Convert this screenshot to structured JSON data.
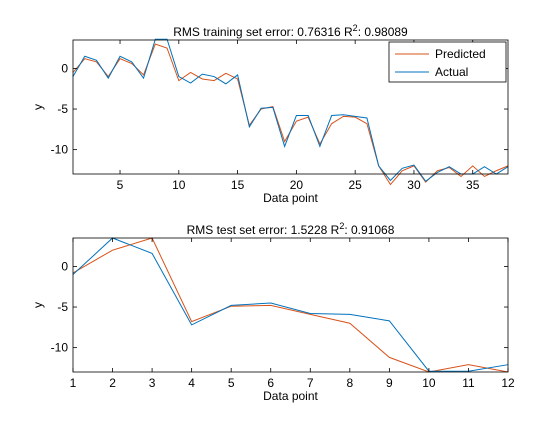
{
  "chart_data": [
    {
      "type": "line",
      "title": "RMS training set error: 0.76316  R",
      "title_sup": "2",
      "title_tail": ": 0.98089",
      "xlabel": "Data point",
      "ylabel": "y",
      "xlim": [
        1,
        38
      ],
      "ylim": [
        -13,
        3.5
      ],
      "xticks": [
        5,
        10,
        15,
        20,
        25,
        30,
        35
      ],
      "yticks": [
        0,
        -5,
        -10
      ],
      "legend_position": "top-right",
      "colors": {
        "Predicted": "#d95319",
        "Actual": "#0072bd"
      },
      "x": [
        1,
        2,
        3,
        4,
        5,
        6,
        7,
        8,
        9,
        10,
        11,
        12,
        13,
        14,
        15,
        16,
        17,
        18,
        19,
        20,
        21,
        22,
        23,
        24,
        25,
        26,
        27,
        28,
        29,
        30,
        31,
        32,
        33,
        34,
        35,
        36,
        37,
        38
      ],
      "series": [
        {
          "name": "Predicted",
          "values": [
            -0.5,
            1.2,
            0.8,
            -1.0,
            1.2,
            0.6,
            -0.8,
            3.0,
            2.5,
            -1.5,
            -0.5,
            -1.3,
            -1.5,
            -0.6,
            -1.3,
            -7.0,
            -5.0,
            -4.7,
            -9.0,
            -6.5,
            -6.0,
            -9.3,
            -6.8,
            -5.9,
            -6.0,
            -6.8,
            -12.0,
            -14.3,
            -12.6,
            -12.0,
            -14.0,
            -12.6,
            -12.2,
            -13.3,
            -12.0,
            -13.3,
            -12.6,
            -12.0
          ]
        },
        {
          "name": "Actual",
          "values": [
            -1.0,
            1.5,
            1.0,
            -1.2,
            1.5,
            0.8,
            -1.2,
            3.6,
            3.6,
            -1.0,
            -1.8,
            -0.7,
            -1.0,
            -1.9,
            -0.8,
            -7.2,
            -4.9,
            -4.8,
            -9.6,
            -5.8,
            -5.8,
            -9.6,
            -5.8,
            -5.7,
            -5.9,
            -6.1,
            -12.0,
            -13.8,
            -12.3,
            -11.9,
            -13.9,
            -12.8,
            -12.1,
            -13.0,
            -13.0,
            -12.1,
            -13.0,
            -12.1
          ]
        }
      ]
    },
    {
      "type": "line",
      "title": "RMS test set error: 1.5228  R",
      "title_sup": "2",
      "title_tail": ": 0.91068",
      "xlabel": "Data point",
      "ylabel": "y",
      "xlim": [
        1,
        12
      ],
      "ylim": [
        -13,
        3.5
      ],
      "xticks": [
        1,
        2,
        3,
        4,
        5,
        6,
        7,
        8,
        9,
        10,
        11,
        12
      ],
      "yticks": [
        0,
        -5,
        -10
      ],
      "colors": {
        "Predicted": "#d95319",
        "Actual": "#0072bd"
      },
      "x": [
        1,
        2,
        3,
        4,
        5,
        6,
        7,
        8,
        9,
        10,
        11,
        12
      ],
      "series": [
        {
          "name": "Predicted",
          "values": [
            -0.8,
            2.0,
            3.5,
            -6.8,
            -4.9,
            -4.8,
            -5.9,
            -7.0,
            -11.2,
            -13.0,
            -12.1,
            -13.0
          ]
        },
        {
          "name": "Actual",
          "values": [
            -1.0,
            3.5,
            1.6,
            -7.2,
            -4.8,
            -4.5,
            -5.8,
            -5.9,
            -6.7,
            -12.9,
            -12.9,
            -12.1
          ]
        }
      ]
    }
  ]
}
